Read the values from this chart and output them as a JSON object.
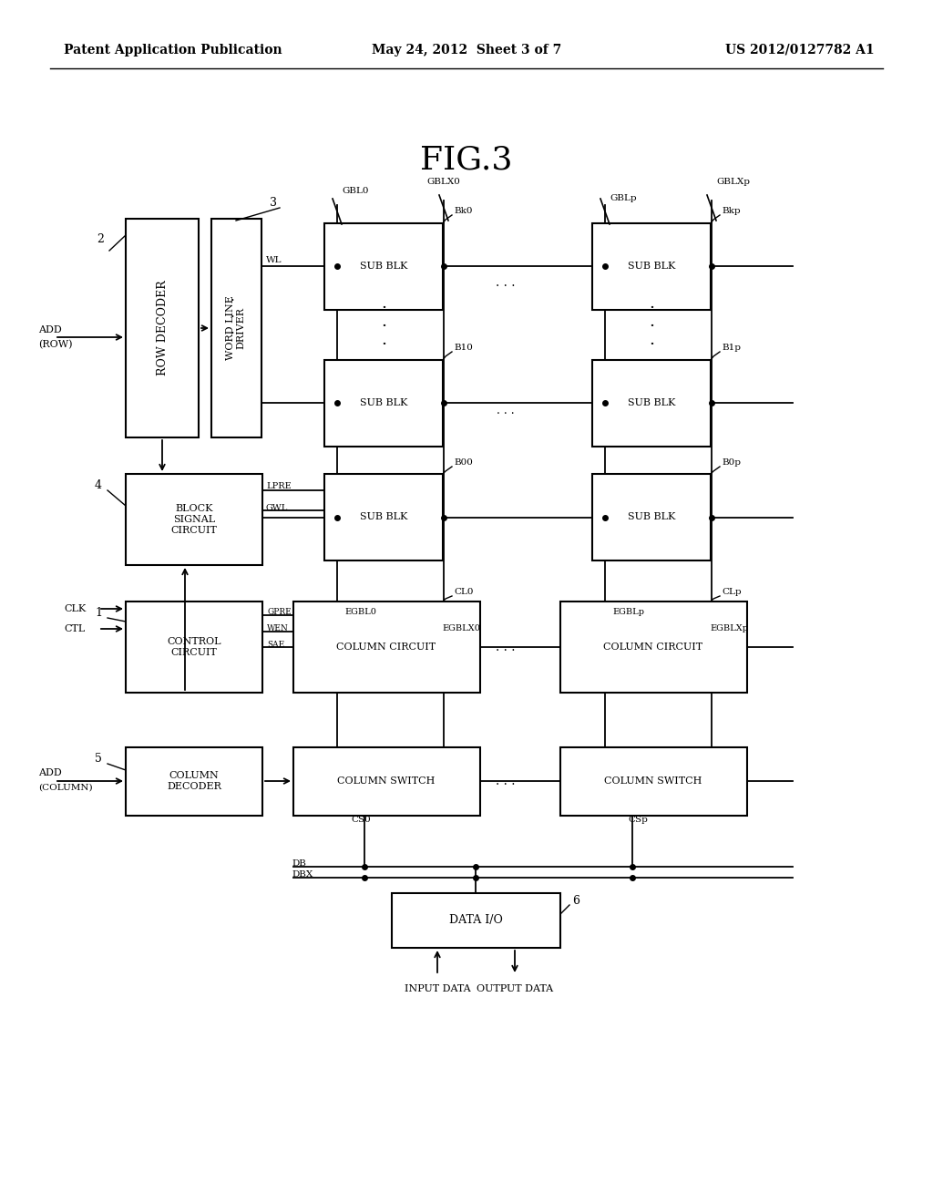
{
  "bg_color": "#ffffff",
  "title": "FIG.3",
  "header_left": "Patent Application Publication",
  "header_center": "May 24, 2012  Sheet 3 of 7",
  "header_right": "US 2012/0127782 A1"
}
